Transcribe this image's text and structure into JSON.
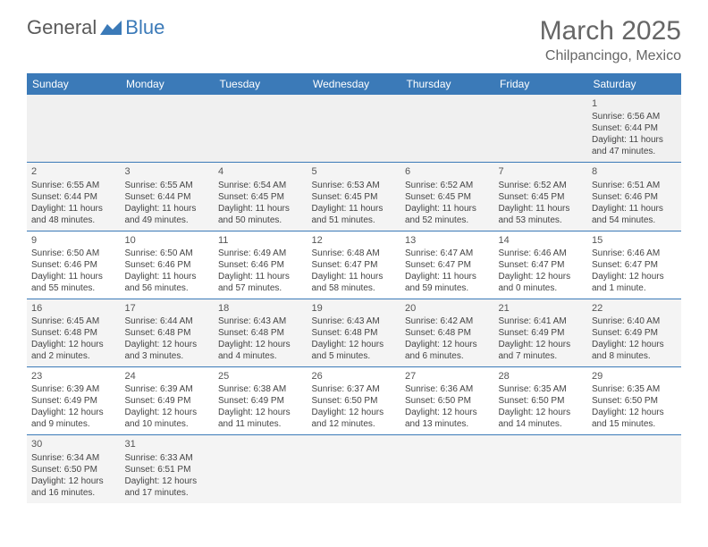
{
  "logo": {
    "text1": "General",
    "text2": "Blue"
  },
  "title": "March 2025",
  "location": "Chilpancingo, Mexico",
  "weekdays": [
    "Sunday",
    "Monday",
    "Tuesday",
    "Wednesday",
    "Thursday",
    "Friday",
    "Saturday"
  ],
  "colors": {
    "header_bg": "#3b7ab8",
    "header_text": "#ffffff",
    "border": "#3b7ab8",
    "text": "#444444",
    "alt_row": "#f4f4f4"
  },
  "fonts": {
    "title_size": 30,
    "location_size": 16,
    "weekday_size": 12,
    "cell_size": 10
  },
  "days": [
    {
      "n": "",
      "sr": "",
      "ss": "",
      "dl": ""
    },
    {
      "n": "",
      "sr": "",
      "ss": "",
      "dl": ""
    },
    {
      "n": "",
      "sr": "",
      "ss": "",
      "dl": ""
    },
    {
      "n": "",
      "sr": "",
      "ss": "",
      "dl": ""
    },
    {
      "n": "",
      "sr": "",
      "ss": "",
      "dl": ""
    },
    {
      "n": "",
      "sr": "",
      "ss": "",
      "dl": ""
    },
    {
      "n": "1",
      "sr": "Sunrise: 6:56 AM",
      "ss": "Sunset: 6:44 PM",
      "dl": "Daylight: 11 hours and 47 minutes."
    },
    {
      "n": "2",
      "sr": "Sunrise: 6:55 AM",
      "ss": "Sunset: 6:44 PM",
      "dl": "Daylight: 11 hours and 48 minutes."
    },
    {
      "n": "3",
      "sr": "Sunrise: 6:55 AM",
      "ss": "Sunset: 6:44 PM",
      "dl": "Daylight: 11 hours and 49 minutes."
    },
    {
      "n": "4",
      "sr": "Sunrise: 6:54 AM",
      "ss": "Sunset: 6:45 PM",
      "dl": "Daylight: 11 hours and 50 minutes."
    },
    {
      "n": "5",
      "sr": "Sunrise: 6:53 AM",
      "ss": "Sunset: 6:45 PM",
      "dl": "Daylight: 11 hours and 51 minutes."
    },
    {
      "n": "6",
      "sr": "Sunrise: 6:52 AM",
      "ss": "Sunset: 6:45 PM",
      "dl": "Daylight: 11 hours and 52 minutes."
    },
    {
      "n": "7",
      "sr": "Sunrise: 6:52 AM",
      "ss": "Sunset: 6:45 PM",
      "dl": "Daylight: 11 hours and 53 minutes."
    },
    {
      "n": "8",
      "sr": "Sunrise: 6:51 AM",
      "ss": "Sunset: 6:46 PM",
      "dl": "Daylight: 11 hours and 54 minutes."
    },
    {
      "n": "9",
      "sr": "Sunrise: 6:50 AM",
      "ss": "Sunset: 6:46 PM",
      "dl": "Daylight: 11 hours and 55 minutes."
    },
    {
      "n": "10",
      "sr": "Sunrise: 6:50 AM",
      "ss": "Sunset: 6:46 PM",
      "dl": "Daylight: 11 hours and 56 minutes."
    },
    {
      "n": "11",
      "sr": "Sunrise: 6:49 AM",
      "ss": "Sunset: 6:46 PM",
      "dl": "Daylight: 11 hours and 57 minutes."
    },
    {
      "n": "12",
      "sr": "Sunrise: 6:48 AM",
      "ss": "Sunset: 6:47 PM",
      "dl": "Daylight: 11 hours and 58 minutes."
    },
    {
      "n": "13",
      "sr": "Sunrise: 6:47 AM",
      "ss": "Sunset: 6:47 PM",
      "dl": "Daylight: 11 hours and 59 minutes."
    },
    {
      "n": "14",
      "sr": "Sunrise: 6:46 AM",
      "ss": "Sunset: 6:47 PM",
      "dl": "Daylight: 12 hours and 0 minutes."
    },
    {
      "n": "15",
      "sr": "Sunrise: 6:46 AM",
      "ss": "Sunset: 6:47 PM",
      "dl": "Daylight: 12 hours and 1 minute."
    },
    {
      "n": "16",
      "sr": "Sunrise: 6:45 AM",
      "ss": "Sunset: 6:48 PM",
      "dl": "Daylight: 12 hours and 2 minutes."
    },
    {
      "n": "17",
      "sr": "Sunrise: 6:44 AM",
      "ss": "Sunset: 6:48 PM",
      "dl": "Daylight: 12 hours and 3 minutes."
    },
    {
      "n": "18",
      "sr": "Sunrise: 6:43 AM",
      "ss": "Sunset: 6:48 PM",
      "dl": "Daylight: 12 hours and 4 minutes."
    },
    {
      "n": "19",
      "sr": "Sunrise: 6:43 AM",
      "ss": "Sunset: 6:48 PM",
      "dl": "Daylight: 12 hours and 5 minutes."
    },
    {
      "n": "20",
      "sr": "Sunrise: 6:42 AM",
      "ss": "Sunset: 6:48 PM",
      "dl": "Daylight: 12 hours and 6 minutes."
    },
    {
      "n": "21",
      "sr": "Sunrise: 6:41 AM",
      "ss": "Sunset: 6:49 PM",
      "dl": "Daylight: 12 hours and 7 minutes."
    },
    {
      "n": "22",
      "sr": "Sunrise: 6:40 AM",
      "ss": "Sunset: 6:49 PM",
      "dl": "Daylight: 12 hours and 8 minutes."
    },
    {
      "n": "23",
      "sr": "Sunrise: 6:39 AM",
      "ss": "Sunset: 6:49 PM",
      "dl": "Daylight: 12 hours and 9 minutes."
    },
    {
      "n": "24",
      "sr": "Sunrise: 6:39 AM",
      "ss": "Sunset: 6:49 PM",
      "dl": "Daylight: 12 hours and 10 minutes."
    },
    {
      "n": "25",
      "sr": "Sunrise: 6:38 AM",
      "ss": "Sunset: 6:49 PM",
      "dl": "Daylight: 12 hours and 11 minutes."
    },
    {
      "n": "26",
      "sr": "Sunrise: 6:37 AM",
      "ss": "Sunset: 6:50 PM",
      "dl": "Daylight: 12 hours and 12 minutes."
    },
    {
      "n": "27",
      "sr": "Sunrise: 6:36 AM",
      "ss": "Sunset: 6:50 PM",
      "dl": "Daylight: 12 hours and 13 minutes."
    },
    {
      "n": "28",
      "sr": "Sunrise: 6:35 AM",
      "ss": "Sunset: 6:50 PM",
      "dl": "Daylight: 12 hours and 14 minutes."
    },
    {
      "n": "29",
      "sr": "Sunrise: 6:35 AM",
      "ss": "Sunset: 6:50 PM",
      "dl": "Daylight: 12 hours and 15 minutes."
    },
    {
      "n": "30",
      "sr": "Sunrise: 6:34 AM",
      "ss": "Sunset: 6:50 PM",
      "dl": "Daylight: 12 hours and 16 minutes."
    },
    {
      "n": "31",
      "sr": "Sunrise: 6:33 AM",
      "ss": "Sunset: 6:51 PM",
      "dl": "Daylight: 12 hours and 17 minutes."
    },
    {
      "n": "",
      "sr": "",
      "ss": "",
      "dl": ""
    },
    {
      "n": "",
      "sr": "",
      "ss": "",
      "dl": ""
    },
    {
      "n": "",
      "sr": "",
      "ss": "",
      "dl": ""
    },
    {
      "n": "",
      "sr": "",
      "ss": "",
      "dl": ""
    },
    {
      "n": "",
      "sr": "",
      "ss": "",
      "dl": ""
    }
  ]
}
